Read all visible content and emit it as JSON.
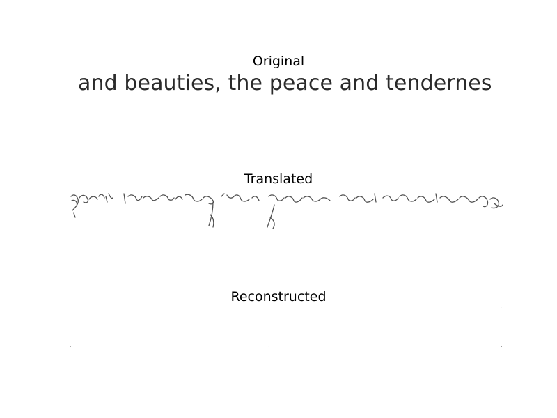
{
  "panels": {
    "original": {
      "title": "Original",
      "text": "and beauties, the peace and tendernes"
    },
    "translated": {
      "title": "Translated"
    },
    "reconstructed": {
      "title": "Reconstructed"
    }
  }
}
